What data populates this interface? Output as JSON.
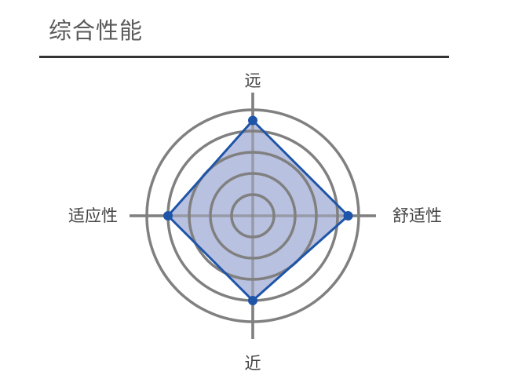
{
  "title": "综合性能",
  "chart_data": {
    "type": "radar",
    "axes": [
      "远",
      "舒适性",
      "近",
      "适应性"
    ],
    "values": [
      4.5,
      4.5,
      4.0,
      4.0
    ],
    "range": [
      0,
      5
    ],
    "rings": 5,
    "colors": {
      "fill": "#b9c1e0",
      "line": "#1f55a8",
      "grid": "#808080"
    }
  }
}
